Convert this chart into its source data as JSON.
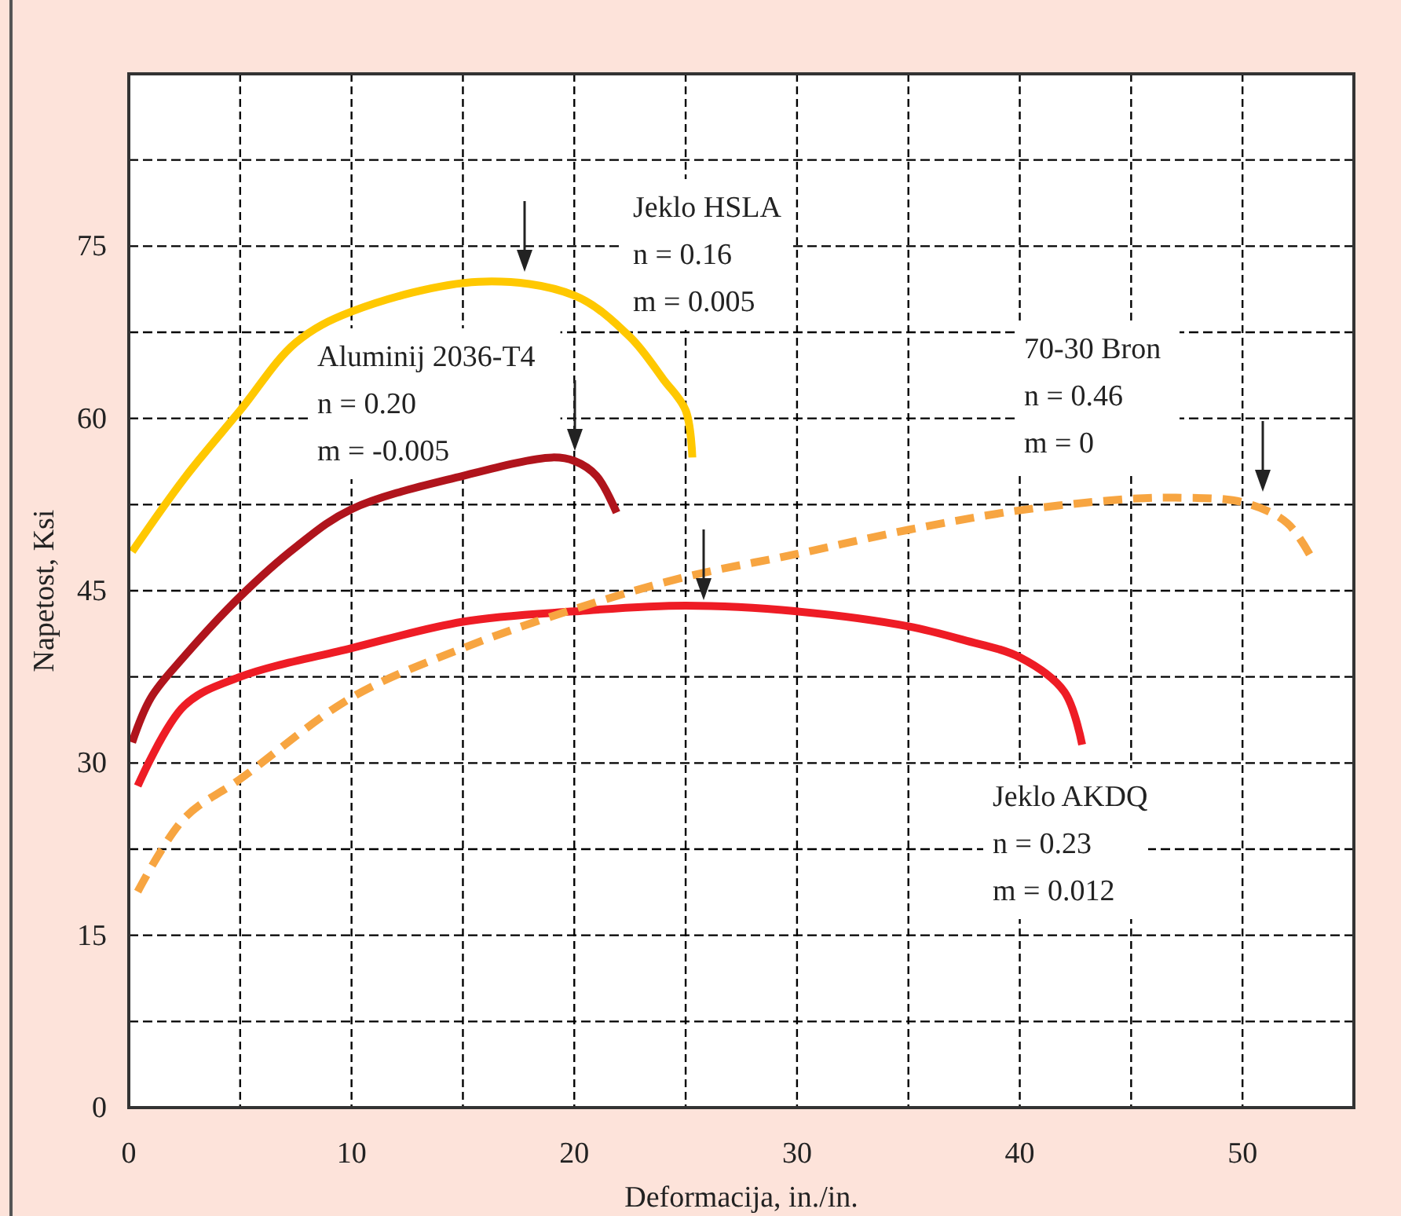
{
  "chart_data": {
    "type": "line",
    "xlabel": "Deformacija, in./in.",
    "ylabel": "Napetost, Ksi",
    "xlim": [
      0,
      55
    ],
    "ylim": [
      0,
      90
    ],
    "xticks": [
      0,
      {
        "value": 5,
        "label": null
      },
      10,
      {
        "value": 15,
        "label": null
      },
      20,
      {
        "value": 25,
        "label": null
      },
      30,
      {
        "value": 35,
        "label": null
      },
      40,
      {
        "value": 45,
        "label": null
      },
      50
    ],
    "yticks": [
      0,
      {
        "value": 7.5,
        "label": null
      },
      15,
      {
        "value": 22.5,
        "label": null
      },
      30,
      {
        "value": 37.5,
        "label": null
      },
      45,
      {
        "value": 52.5,
        "label": null
      },
      60,
      {
        "value": 67.5,
        "label": null
      },
      75,
      {
        "value": 82.5,
        "label": null
      }
    ],
    "grid": true,
    "series": [
      {
        "color": "#ffc800",
        "line_style": "solid",
        "x": [
          0.15,
          2.5,
          5,
          7.5,
          10,
          15.7,
          20,
          22.5,
          24,
          25,
          25.3
        ],
        "values": [
          48.4,
          54.8,
          60.7,
          66.6,
          69.3,
          71.9,
          70.7,
          67.1,
          63.4,
          60.7,
          56.6
        ]
      },
      {
        "color": "#b0141c",
        "line_style": "solid",
        "x": [
          0.15,
          1,
          2.5,
          5,
          7.5,
          10,
          15,
          19,
          20,
          21,
          21.9
        ],
        "values": [
          31.8,
          35.7,
          39.3,
          44.5,
          48.8,
          52.1,
          55,
          56.6,
          56.3,
          55,
          51.8
        ]
      },
      {
        "color": "#ee1c25",
        "line_style": "solid",
        "x": [
          0.4,
          2.5,
          5,
          10,
          15,
          20,
          25,
          30,
          35,
          37.5,
          40,
          42,
          42.8
        ],
        "values": [
          28,
          35,
          37.5,
          40,
          42.3,
          43.2,
          43.7,
          43.2,
          41.9,
          40.7,
          39.2,
          36.2,
          31.6
        ]
      },
      {
        "color": "#f7a541",
        "line_style": "dashed",
        "x": [
          0.4,
          2.5,
          5,
          10,
          15,
          20,
          25,
          30,
          35,
          40,
          45,
          47,
          50,
          52,
          53.2
        ],
        "values": [
          18.8,
          25.2,
          28.6,
          35.7,
          40,
          43.4,
          46.2,
          48.2,
          50.3,
          52,
          53,
          53.1,
          52.7,
          50.9,
          47.5
        ]
      }
    ],
    "annotations": [
      "Jeklo HSLA\nn = 0.16\nm = 0.005",
      "Aluminij 2036-T4\nn = 0.20\nm = -0.005",
      "Jeklo AKDQ\nn = 0.23\nm = 0.012",
      "70-30 Bron\nn = 0.46\nm = 0"
    ]
  }
}
